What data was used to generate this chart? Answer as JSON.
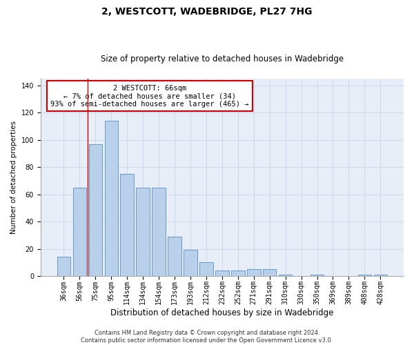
{
  "title": "2, WESTCOTT, WADEBRIDGE, PL27 7HG",
  "subtitle": "Size of property relative to detached houses in Wadebridge",
  "xlabel": "Distribution of detached houses by size in Wadebridge",
  "ylabel": "Number of detached properties",
  "categories": [
    "36sqm",
    "56sqm",
    "75sqm",
    "95sqm",
    "114sqm",
    "134sqm",
    "154sqm",
    "173sqm",
    "193sqm",
    "212sqm",
    "232sqm",
    "252sqm",
    "271sqm",
    "291sqm",
    "310sqm",
    "330sqm",
    "350sqm",
    "369sqm",
    "389sqm",
    "408sqm",
    "428sqm"
  ],
  "values": [
    14,
    65,
    97,
    114,
    75,
    65,
    65,
    29,
    19,
    10,
    4,
    4,
    5,
    5,
    1,
    0,
    1,
    0,
    0,
    1,
    1
  ],
  "bar_color": "#b8d0ea",
  "bar_edge_color": "#5a8fc0",
  "vline_x": 1.5,
  "vline_color": "#cc0000",
  "annotation_text": "2 WESTCOTT: 66sqm\n← 7% of detached houses are smaller (34)\n93% of semi-detached houses are larger (465) →",
  "annotation_box_color": "white",
  "annotation_box_edge_color": "#cc0000",
  "ylim": [
    0,
    145
  ],
  "yticks": [
    0,
    20,
    40,
    60,
    80,
    100,
    120,
    140
  ],
  "grid_color": "#c8d4e8",
  "background_color": "#e8eef8",
  "footer_text": "Contains HM Land Registry data © Crown copyright and database right 2024.\nContains public sector information licensed under the Open Government Licence v3.0.",
  "title_fontsize": 10,
  "subtitle_fontsize": 8.5,
  "xlabel_fontsize": 8.5,
  "ylabel_fontsize": 7.5,
  "tick_fontsize": 7,
  "annotation_fontsize": 7.5,
  "footer_fontsize": 6
}
